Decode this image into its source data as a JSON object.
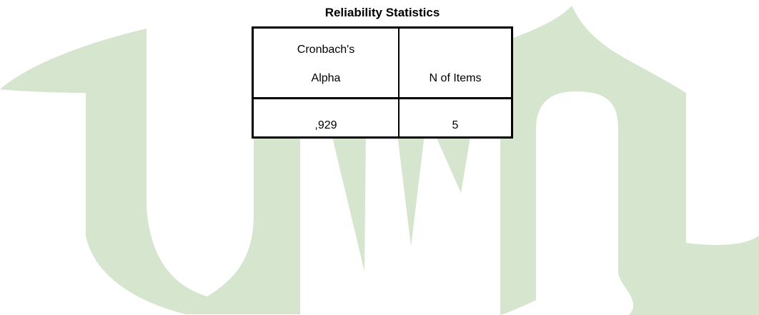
{
  "title": "Reliability Statistics",
  "table": {
    "columns": [
      "Cronbach's Alpha",
      "N of Items"
    ],
    "rows": [
      [
        ",929",
        "5"
      ]
    ]
  }
}
